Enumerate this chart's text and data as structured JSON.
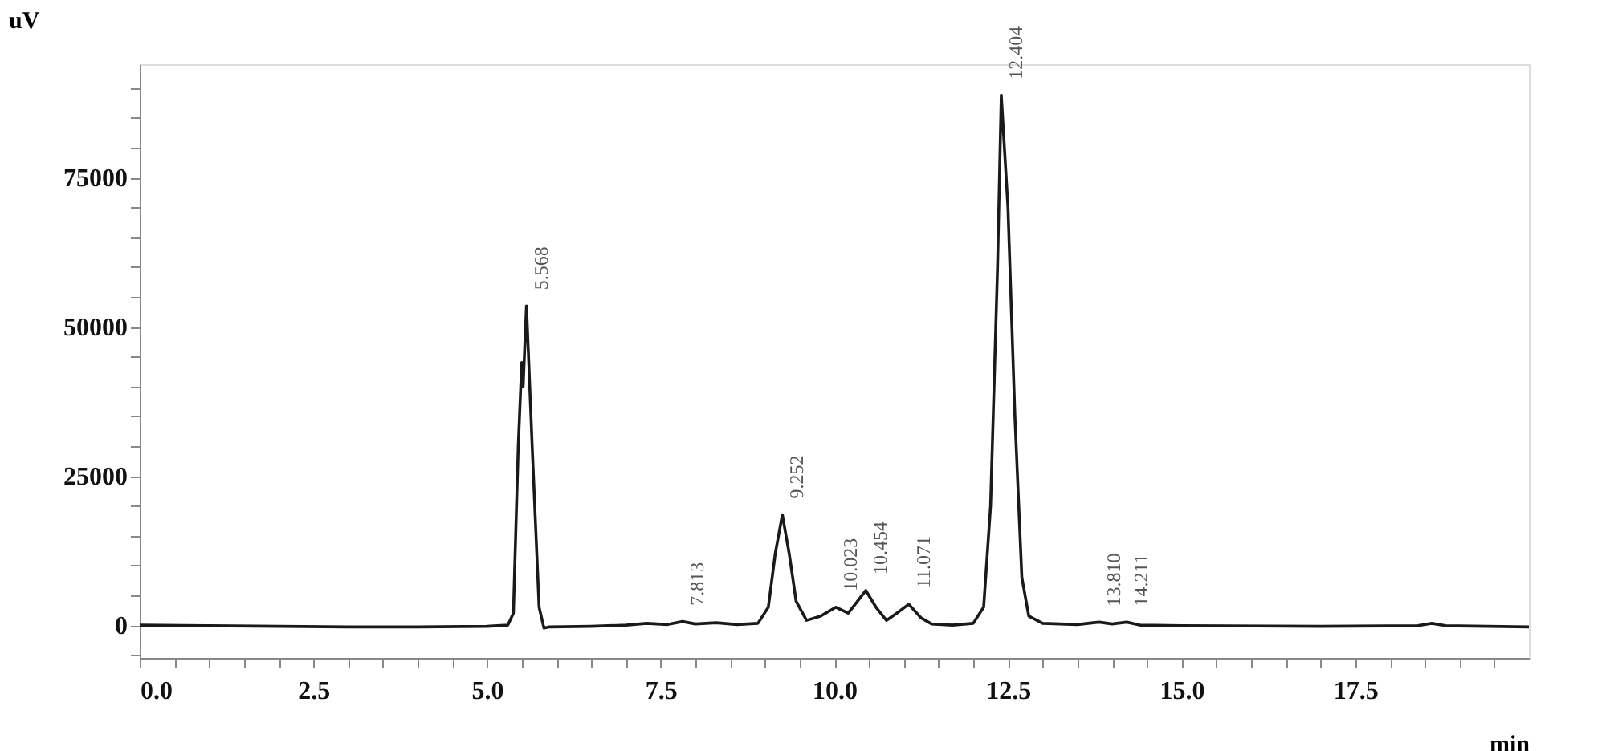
{
  "chart_data": {
    "type": "line",
    "xlabel": "min",
    "ylabel": "uV",
    "xlim": [
      0,
      20
    ],
    "ylim": [
      -5500,
      94000
    ],
    "xticks": [
      {
        "value": 0,
        "label": "0.0"
      },
      {
        "value": 0.5,
        "label": null
      },
      {
        "value": 1,
        "label": null
      },
      {
        "value": 1.5,
        "label": null
      },
      {
        "value": 2,
        "label": null
      },
      {
        "value": 2.5,
        "label": "2.5"
      },
      {
        "value": 3,
        "label": null
      },
      {
        "value": 3.5,
        "label": null
      },
      {
        "value": 4,
        "label": null
      },
      {
        "value": 4.5,
        "label": null
      },
      {
        "value": 5,
        "label": "5.0"
      },
      {
        "value": 5.5,
        "label": null
      },
      {
        "value": 6,
        "label": null
      },
      {
        "value": 6.5,
        "label": null
      },
      {
        "value": 7,
        "label": null
      },
      {
        "value": 7.5,
        "label": "7.5"
      },
      {
        "value": 8,
        "label": null
      },
      {
        "value": 8.5,
        "label": null
      },
      {
        "value": 9,
        "label": null
      },
      {
        "value": 9.5,
        "label": null
      },
      {
        "value": 10,
        "label": "10.0"
      },
      {
        "value": 10.5,
        "label": null
      },
      {
        "value": 11,
        "label": null
      },
      {
        "value": 11.5,
        "label": null
      },
      {
        "value": 12,
        "label": null
      },
      {
        "value": 12.5,
        "label": "12.5"
      },
      {
        "value": 13,
        "label": null
      },
      {
        "value": 13.5,
        "label": null
      },
      {
        "value": 14,
        "label": null
      },
      {
        "value": 14.5,
        "label": null
      },
      {
        "value": 15,
        "label": "15.0"
      },
      {
        "value": 15.5,
        "label": null
      },
      {
        "value": 16,
        "label": null
      },
      {
        "value": 16.5,
        "label": null
      },
      {
        "value": 17,
        "label": null
      },
      {
        "value": 17.5,
        "label": "17.5"
      },
      {
        "value": 18,
        "label": null
      },
      {
        "value": 18.5,
        "label": null
      },
      {
        "value": 19,
        "label": null
      },
      {
        "value": 19.5,
        "label": null
      }
    ],
    "yticks": [
      {
        "value": -5000,
        "label": null
      },
      0,
      {
        "value": 5000,
        "label": null
      },
      {
        "value": 10000,
        "label": null
      },
      {
        "value": 15000,
        "label": null
      },
      {
        "value": 20000,
        "label": null
      },
      25000,
      {
        "value": 30000,
        "label": null
      },
      {
        "value": 35000,
        "label": null
      },
      {
        "value": 40000,
        "label": null
      },
      {
        "value": 45000,
        "label": null
      },
      50000,
      {
        "value": 55000,
        "label": null
      },
      {
        "value": 60000,
        "label": null
      },
      {
        "value": 65000,
        "label": null
      },
      {
        "value": 70000,
        "label": null
      },
      75000,
      {
        "value": 80000,
        "label": null
      },
      {
        "value": 85000,
        "label": null
      },
      {
        "value": 90000,
        "label": null
      }
    ],
    "grid": false,
    "legend": false,
    "marker": "none",
    "line_style": "solid",
    "series": [
      {
        "color": "#1a1a1a",
        "x": [
          0,
          1,
          2,
          3,
          4,
          5,
          5.3,
          5.38,
          5.45,
          5.5,
          5.52,
          5.568,
          5.65,
          5.75,
          5.82,
          5.9,
          6.5,
          7.0,
          7.3,
          7.6,
          7.813,
          8.0,
          8.3,
          8.6,
          8.9,
          9.05,
          9.15,
          9.252,
          9.35,
          9.45,
          9.6,
          9.8,
          10.023,
          10.2,
          10.3,
          10.454,
          10.6,
          10.75,
          10.9,
          11.071,
          11.25,
          11.4,
          11.7,
          12.0,
          12.15,
          12.25,
          12.35,
          12.404,
          12.5,
          12.6,
          12.7,
          12.8,
          13.0,
          13.5,
          13.81,
          14.0,
          14.211,
          14.4,
          15,
          17,
          18.4,
          18.6,
          18.8,
          20
        ],
        "values": [
          0,
          -100,
          -200,
          -300,
          -300,
          -200,
          0,
          2000,
          30000,
          44000,
          40000,
          53500,
          30000,
          3000,
          -500,
          -300,
          -200,
          0,
          300,
          100,
          600,
          200,
          400,
          100,
          300,
          3000,
          12000,
          18500,
          12000,
          4000,
          800,
          1500,
          3000,
          2000,
          3500,
          5800,
          3000,
          800,
          2000,
          3500,
          1200,
          200,
          0,
          300,
          3000,
          20000,
          60000,
          88800,
          70000,
          35000,
          8000,
          1500,
          300,
          100,
          500,
          200,
          500,
          0,
          -100,
          -200,
          -100,
          300,
          -100,
          -300
        ]
      }
    ],
    "annotations": [
      {
        "text": "5.568",
        "x": 5.568,
        "y": 53500
      },
      {
        "text": "7.813",
        "x": 7.813,
        "y": 600
      },
      {
        "text": "9.252",
        "x": 9.252,
        "y": 18500
      },
      {
        "text": "10.023",
        "x": 10.023,
        "y": 3000
      },
      {
        "text": "10.454",
        "x": 10.454,
        "y": 5800
      },
      {
        "text": "11.071",
        "x": 11.071,
        "y": 3500
      },
      {
        "text": "12.404",
        "x": 12.404,
        "y": 88800
      },
      {
        "text": "13.810",
        "x": 13.81,
        "y": 500
      },
      {
        "text": "14.211",
        "x": 14.211,
        "y": 500
      }
    ]
  }
}
